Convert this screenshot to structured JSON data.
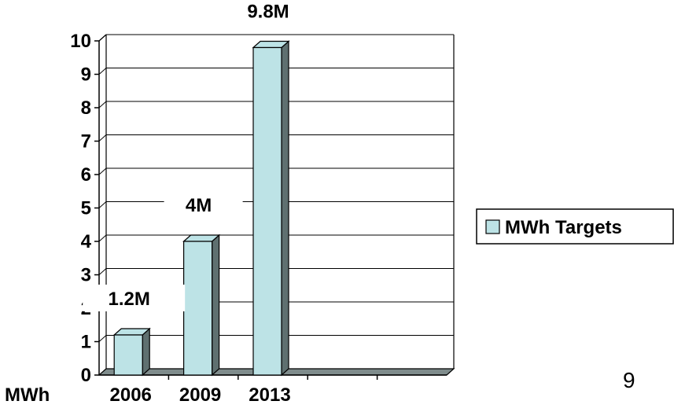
{
  "chart_data": {
    "type": "bar",
    "categories": [
      "2006",
      "2009",
      "2013"
    ],
    "series": [
      {
        "name": "MWh Targets",
        "values": [
          1.2,
          4,
          9.8
        ],
        "data_labels": [
          "1.2M",
          "4M",
          "9.8M"
        ]
      }
    ],
    "y_ticks": [
      "0",
      "1",
      "2",
      "3",
      "4",
      "5",
      "6",
      "7",
      "8",
      "9",
      "10"
    ],
    "ylim": [
      0,
      10
    ],
    "ylabel": "MWh",
    "grid": true,
    "legend_position": "right",
    "bar_color": "#bde3e6",
    "bar_side_color": "#5f7070",
    "floor_color": "#7f8c8c"
  },
  "page_number": "9"
}
